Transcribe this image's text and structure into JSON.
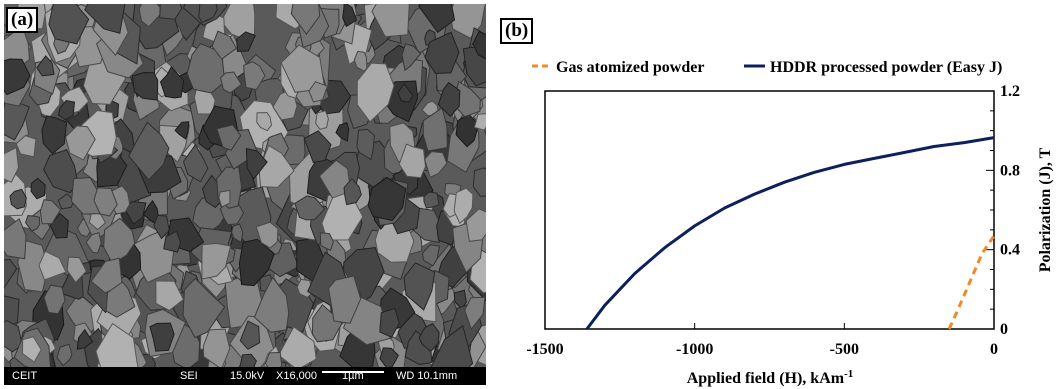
{
  "panel_a": {
    "label": "(a)",
    "info_bar": {
      "org": "CEIT",
      "mode": "SEI",
      "voltage": "15.0kV",
      "magnification": "X16,000",
      "scale": "1µm",
      "wd": "WD 10.1mm"
    }
  },
  "panel_b": {
    "label": "(b)"
  },
  "chart_data": {
    "type": "line",
    "xlabel": "Applied field (H), kAm",
    "xlabel_sup": "-1",
    "ylabel": "Polarization (J), T",
    "xlim": [
      -1500,
      0
    ],
    "ylim": [
      0,
      1.2
    ],
    "x_ticks": [
      -1500,
      -1000,
      -500,
      0
    ],
    "x_tick_labels": [
      "-1500",
      "-1000",
      "-500",
      "0"
    ],
    "y_ticks": [
      0,
      0.4,
      0.8,
      1.2
    ],
    "y_tick_labels": [
      "0",
      "0.4",
      "0.8",
      "1.2"
    ],
    "y_axis_side": "right",
    "legend_position": "top",
    "series": [
      {
        "name": "Gas atomized powder",
        "color": "#f08a24",
        "dash": true,
        "x": [
          -150,
          -120,
          -80,
          -40,
          0
        ],
        "y": [
          0,
          0.1,
          0.24,
          0.38,
          0.47
        ]
      },
      {
        "name": "HDDR processed powder (Easy J)",
        "color": "#0d1f5c",
        "dash": false,
        "x": [
          -1360,
          -1300,
          -1200,
          -1100,
          -1000,
          -900,
          -800,
          -700,
          -600,
          -500,
          -400,
          -300,
          -200,
          -100,
          0
        ],
        "y": [
          0,
          0.12,
          0.28,
          0.41,
          0.52,
          0.61,
          0.68,
          0.74,
          0.79,
          0.83,
          0.86,
          0.89,
          0.92,
          0.94,
          0.965
        ]
      }
    ]
  }
}
